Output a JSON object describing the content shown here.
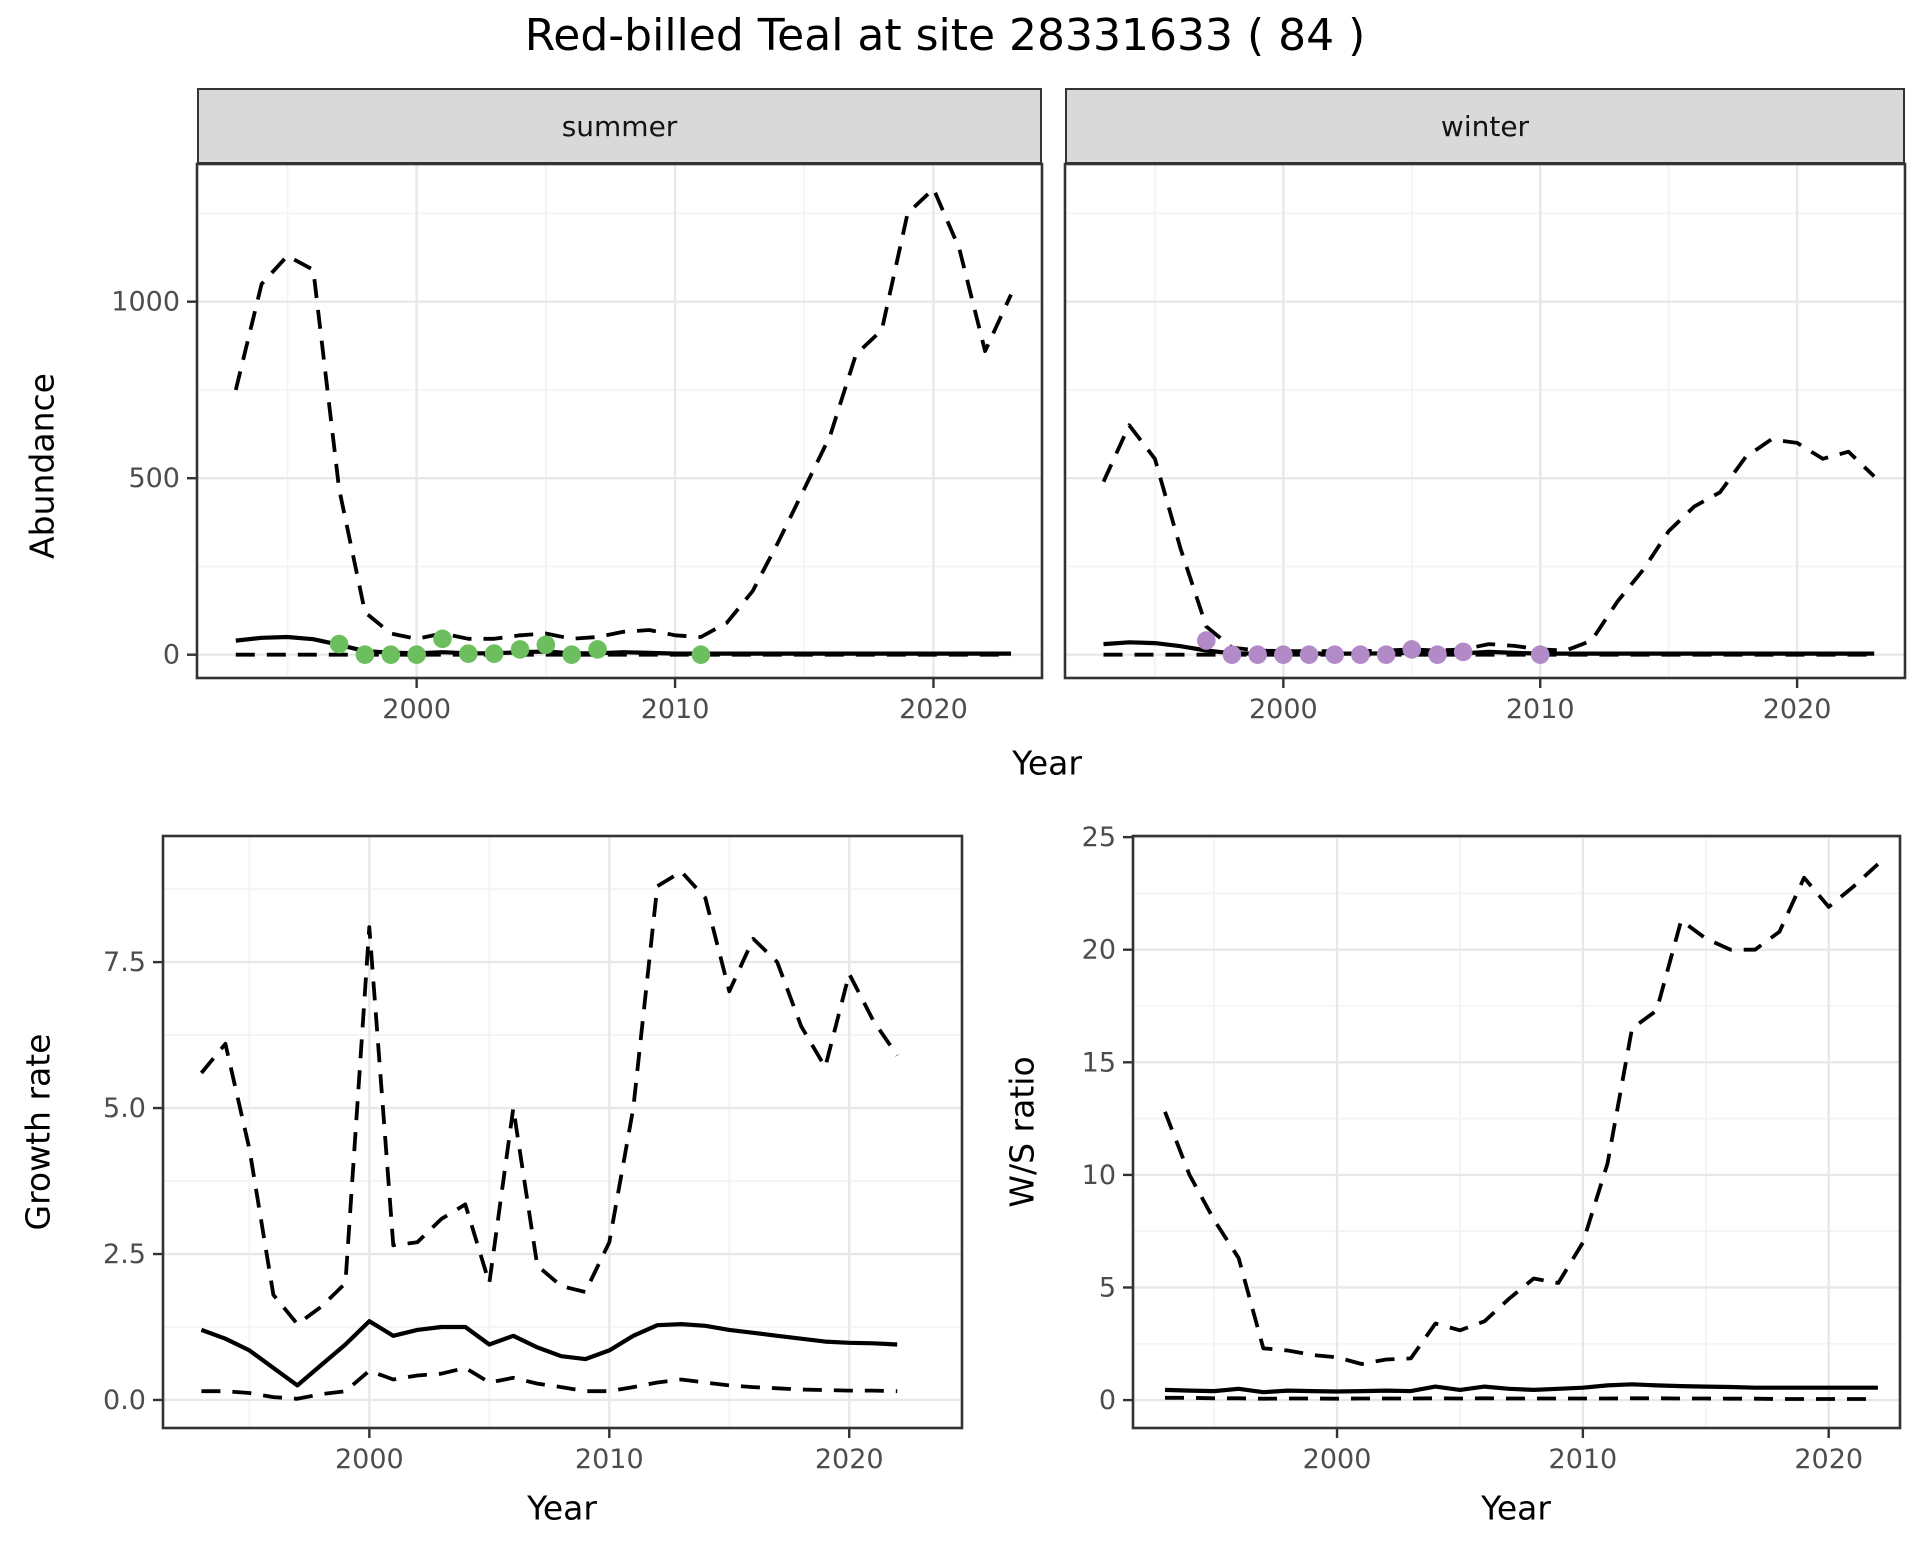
{
  "figure": {
    "title": "Red-billed Teal at site 28331633 ( 84 )"
  },
  "axes": {
    "x_label": "Year",
    "abundance_label": "Abundance",
    "growth_label": "Growth rate",
    "ws_label": "W/S ratio"
  },
  "facets": [
    {
      "label": "summer"
    },
    {
      "label": "winter"
    }
  ],
  "colors": {
    "summer_points": "#6CBE5F",
    "winter_points": "#B28AC8",
    "line": "#000000",
    "strip_fill": "#D9D9D9",
    "panel_border": "#333333",
    "grid_major": "#E8E8E8",
    "grid_minor": "#F4F4F4",
    "tick_text": "#4D4D4D",
    "tick_mark": "#333333"
  },
  "chart_data": [
    {
      "id": "abundance-summer",
      "type": "line",
      "facet": "summer",
      "title": "",
      "xlabel": "Year",
      "ylabel": "Abundance",
      "xlim": [
        1991.5,
        2024.2
      ],
      "ylim": [
        -66,
        1390
      ],
      "x_ticks": [
        2000,
        2010,
        2020
      ],
      "x_minor": [
        1995,
        2005,
        2015
      ],
      "y_ticks": [
        0,
        500,
        1000
      ],
      "y_tick_labels": [
        "0",
        "500",
        "1000"
      ],
      "y_minor": [
        250,
        750,
        1250
      ],
      "grid": true,
      "year_start": 1993,
      "series": [
        {
          "name": "lower_ci",
          "style": "dashed",
          "values": [
            0,
            0,
            0,
            0,
            0,
            0,
            0,
            0,
            0,
            0,
            0,
            0,
            0,
            0,
            0,
            0,
            0,
            0,
            0,
            0,
            0,
            0,
            0,
            0,
            0,
            0,
            0,
            0,
            0,
            0,
            0
          ]
        },
        {
          "name": "upper_ci",
          "style": "dashed",
          "values": [
            750,
            1050,
            1130,
            1090,
            470,
            120,
            60,
            45,
            60,
            45,
            45,
            55,
            60,
            45,
            50,
            65,
            70,
            55,
            50,
            90,
            180,
            320,
            470,
            620,
            850,
            920,
            1250,
            1320,
            1150,
            860,
            1020
          ]
        },
        {
          "name": "median",
          "style": "solid",
          "values": [
            40,
            48,
            50,
            44,
            28,
            10,
            6,
            4,
            7,
            4,
            4,
            7,
            9,
            4,
            4,
            7,
            5,
            3,
            3,
            3,
            3,
            3,
            3,
            3,
            3,
            3,
            3,
            3,
            3,
            3,
            3
          ]
        }
      ],
      "points": {
        "name": "observed_counts",
        "color_key": "summer_points",
        "x": [
          1997,
          1998,
          1999,
          2000,
          2001,
          2002,
          2003,
          2004,
          2005,
          2006,
          2007,
          2011
        ],
        "y": [
          30,
          0,
          0,
          0,
          45,
          3,
          3,
          15,
          28,
          0,
          15,
          0
        ]
      }
    },
    {
      "id": "abundance-winter",
      "type": "line",
      "facet": "winter",
      "title": "",
      "xlabel": "Year",
      "ylabel": "Abundance",
      "xlim": [
        1991.5,
        2024.2
      ],
      "ylim": [
        -66,
        1390
      ],
      "x_ticks": [
        2000,
        2010,
        2020
      ],
      "x_minor": [
        1995,
        2005,
        2015
      ],
      "y_ticks": [
        0,
        500,
        1000
      ],
      "y_tick_labels": [
        "0",
        "500",
        "1000"
      ],
      "y_minor": [
        250,
        750,
        1250
      ],
      "grid": true,
      "year_start": 1993,
      "series": [
        {
          "name": "lower_ci",
          "style": "dashed",
          "values": [
            0,
            0,
            0,
            0,
            0,
            0,
            0,
            0,
            0,
            0,
            0,
            0,
            0,
            0,
            0,
            0,
            0,
            0,
            0,
            0,
            0,
            0,
            0,
            0,
            0,
            0,
            0,
            0,
            0,
            0,
            0
          ]
        },
        {
          "name": "upper_ci",
          "style": "dashed",
          "values": [
            490,
            650,
            555,
            300,
            80,
            20,
            12,
            10,
            10,
            10,
            10,
            12,
            15,
            12,
            15,
            30,
            25,
            15,
            12,
            40,
            150,
            240,
            350,
            420,
            460,
            560,
            610,
            600,
            555,
            575,
            505
          ]
        },
        {
          "name": "median",
          "style": "solid",
          "values": [
            30,
            35,
            33,
            24,
            12,
            4,
            3,
            3,
            3,
            3,
            3,
            4,
            5,
            3,
            4,
            8,
            5,
            3,
            3,
            3,
            3,
            3,
            3,
            3,
            3,
            3,
            3,
            3,
            3,
            3,
            3
          ]
        }
      ],
      "points": {
        "name": "observed_counts",
        "color_key": "winter_points",
        "x": [
          1997,
          1998,
          1999,
          2000,
          2001,
          2002,
          2003,
          2004,
          2005,
          2006,
          2007,
          2010
        ],
        "y": [
          40,
          0,
          0,
          0,
          0,
          0,
          0,
          0,
          15,
          0,
          8,
          0
        ]
      }
    },
    {
      "id": "growth-rate",
      "type": "line",
      "facet": "",
      "title": "",
      "xlabel": "Year",
      "ylabel": "Growth rate",
      "xlim": [
        1991.4,
        2024.7
      ],
      "ylim": [
        -0.48,
        9.66
      ],
      "x_ticks": [
        2000,
        2010,
        2020
      ],
      "x_minor": [
        1995,
        2005,
        2015
      ],
      "y_ticks": [
        0,
        2.5,
        5,
        7.5
      ],
      "y_tick_labels": [
        "0.0",
        "2.5",
        "5.0",
        "7.5"
      ],
      "y_minor": [
        1.25,
        3.75,
        6.25,
        8.75
      ],
      "grid": true,
      "year_start": 1993,
      "series": [
        {
          "name": "lower_ci",
          "style": "dashed",
          "values": [
            0.15,
            0.15,
            0.12,
            0.05,
            0.02,
            0.1,
            0.15,
            0.5,
            0.35,
            0.42,
            0.45,
            0.55,
            0.3,
            0.38,
            0.28,
            0.22,
            0.15,
            0.15,
            0.22,
            0.3,
            0.35,
            0.3,
            0.25,
            0.22,
            0.2,
            0.18,
            0.17,
            0.16,
            0.16,
            0.15
          ]
        },
        {
          "name": "upper_ci",
          "style": "dashed",
          "values": [
            5.6,
            6.1,
            4.3,
            1.8,
            1.3,
            1.6,
            2.0,
            8.1,
            2.65,
            2.7,
            3.1,
            3.35,
            2.0,
            5.0,
            2.3,
            1.95,
            1.85,
            2.7,
            5.0,
            8.8,
            9.05,
            8.6,
            7.0,
            7.9,
            7.5,
            6.4,
            5.7,
            7.3,
            6.5,
            5.9
          ]
        },
        {
          "name": "median",
          "style": "solid",
          "values": [
            1.2,
            1.05,
            0.85,
            0.55,
            0.25,
            0.6,
            0.95,
            1.35,
            1.1,
            1.2,
            1.25,
            1.25,
            0.95,
            1.1,
            0.9,
            0.75,
            0.7,
            0.85,
            1.1,
            1.28,
            1.3,
            1.27,
            1.2,
            1.15,
            1.1,
            1.05,
            1.0,
            0.98,
            0.97,
            0.95
          ]
        }
      ],
      "points": null
    },
    {
      "id": "ws-ratio",
      "type": "line",
      "facet": "",
      "title": "",
      "xlabel": "Year",
      "ylabel": "W/S ratio",
      "xlim": [
        1991.7,
        2022.9
      ],
      "ylim": [
        -1.24,
        25.05
      ],
      "x_ticks": [
        2000,
        2010,
        2020
      ],
      "x_minor": [
        1995,
        2005,
        2015
      ],
      "y_ticks": [
        0,
        5,
        10,
        15,
        20,
        25
      ],
      "y_tick_labels": [
        "0",
        "5",
        "10",
        "15",
        "20",
        "25"
      ],
      "y_minor": [
        2.5,
        7.5,
        12.5,
        17.5,
        22.5
      ],
      "grid": true,
      "year_start": 1993,
      "series": [
        {
          "name": "lower_ci",
          "style": "dashed",
          "values": [
            0.1,
            0.1,
            0.08,
            0.08,
            0.06,
            0.07,
            0.07,
            0.06,
            0.07,
            0.07,
            0.07,
            0.08,
            0.07,
            0.08,
            0.07,
            0.07,
            0.07,
            0.07,
            0.07,
            0.08,
            0.08,
            0.07,
            0.07,
            0.06,
            0.06,
            0.05,
            0.05,
            0.05,
            0.05,
            0.05
          ]
        },
        {
          "name": "upper_ci",
          "style": "dashed",
          "values": [
            12.8,
            10.0,
            8.0,
            6.3,
            2.3,
            2.2,
            2.0,
            1.9,
            1.6,
            1.8,
            1.85,
            3.4,
            3.1,
            3.5,
            4.5,
            5.4,
            5.2,
            7.0,
            10.5,
            16.5,
            17.3,
            21.3,
            20.5,
            20.0,
            20.0,
            20.8,
            23.2,
            21.9,
            22.8,
            23.8
          ]
        },
        {
          "name": "median",
          "style": "solid",
          "values": [
            0.45,
            0.42,
            0.4,
            0.5,
            0.35,
            0.42,
            0.4,
            0.38,
            0.4,
            0.42,
            0.4,
            0.6,
            0.45,
            0.6,
            0.5,
            0.45,
            0.5,
            0.55,
            0.65,
            0.7,
            0.65,
            0.62,
            0.6,
            0.58,
            0.55,
            0.55,
            0.55,
            0.55,
            0.55,
            0.55
          ]
        }
      ],
      "points": null
    }
  ]
}
